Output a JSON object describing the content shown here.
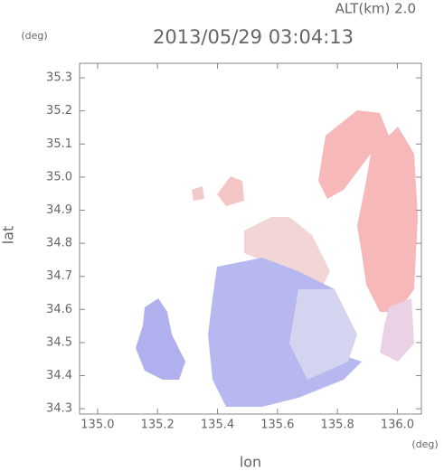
{
  "chart_data": {
    "type": "map",
    "title": "2013/05/29 03:04:13",
    "annotation": "ALT(km) 2.0",
    "x_label": "lon",
    "y_label": "lat",
    "x_unit": "(deg)",
    "y_unit": "(deg)",
    "xlim": [
      134.94,
      136.08
    ],
    "ylim": [
      34.284,
      35.344
    ],
    "xticks": [
      {
        "value": 135.0,
        "label": "135.0"
      },
      135.2,
      135.4,
      135.6,
      135.8,
      {
        "value": 136.0,
        "label": "136.0"
      }
    ],
    "yticks": [
      34.3,
      34.4,
      34.5,
      34.6,
      34.7,
      34.8,
      34.9,
      {
        "value": 35.0,
        "label": "35.0"
      },
      35.1,
      35.2,
      35.3
    ]
  }
}
